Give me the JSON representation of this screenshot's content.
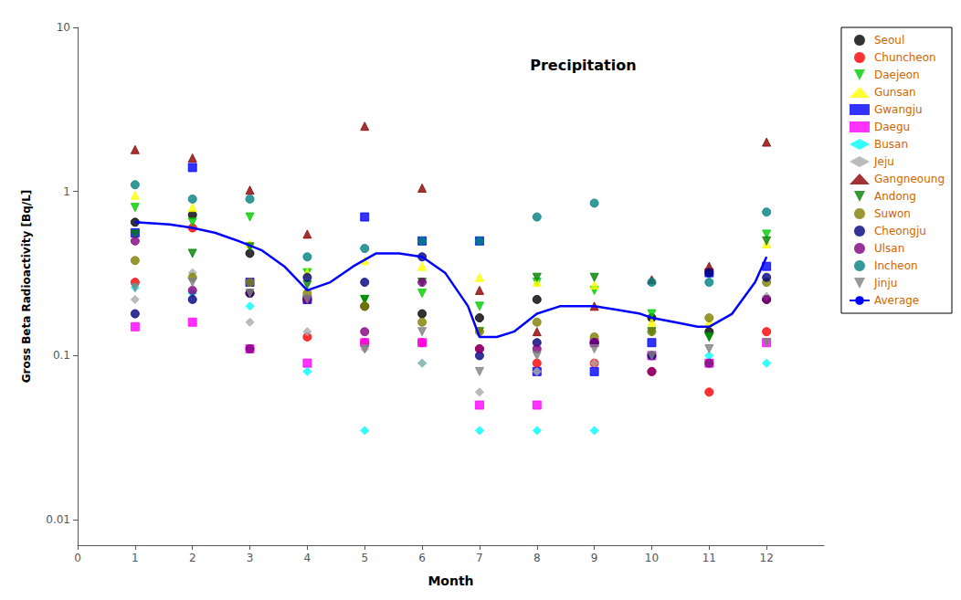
{
  "chart_data": {
    "type": "scatter",
    "title": "Precipitation",
    "xlabel": "Month",
    "ylabel": "Gross Beta Radioactivity [Bq/L]",
    "log": "y",
    "grid": false,
    "legend": "right",
    "xlim": [
      0,
      13
    ],
    "xticks": [
      0,
      1,
      2,
      3,
      4,
      5,
      6,
      7,
      8,
      9,
      10,
      11,
      12
    ],
    "ylim": [
      0.007,
      10
    ],
    "yticks": [
      0.01,
      0.1,
      1,
      10
    ],
    "x": [
      1,
      2,
      3,
      4,
      5,
      6,
      7,
      8,
      9,
      10,
      11,
      12
    ],
    "series": [
      {
        "name": "Seoul",
        "color": "#000000",
        "marker": "circle",
        "values": [
          0.65,
          0.72,
          0.42,
          0.22,
          0.2,
          0.18,
          0.17,
          0.22,
          0.12,
          0.17,
          0.14,
          0.22
        ]
      },
      {
        "name": "Chuncheon",
        "color": "#ff0000",
        "marker": "circle",
        "values": [
          0.28,
          0.6,
          0.24,
          0.13,
          0.12,
          0.12,
          0.11,
          0.09,
          0.09,
          0.08,
          0.06,
          0.14
        ]
      },
      {
        "name": "Daejeon",
        "color": "#00cc00",
        "marker": "triangle_down",
        "values": [
          0.8,
          0.65,
          0.7,
          0.32,
          0.22,
          0.24,
          0.2,
          0.28,
          0.25,
          0.18,
          0.13,
          0.55
        ]
      },
      {
        "name": "Gunsan",
        "color": "#ffff00",
        "marker": "triangle_up",
        "values": [
          0.95,
          0.8,
          0.48,
          0.32,
          0.38,
          0.35,
          0.3,
          0.28,
          0.27,
          0.16,
          0.16,
          0.48
        ]
      },
      {
        "name": "Gwangju",
        "color": "#0000ff",
        "marker": "square",
        "values": [
          0.56,
          1.4,
          0.28,
          0.22,
          0.7,
          0.5,
          0.5,
          0.08,
          0.08,
          0.12,
          0.32,
          0.35
        ]
      },
      {
        "name": "Daegu",
        "color": "#ff00ff",
        "marker": "square",
        "values": [
          0.15,
          0.16,
          0.11,
          0.09,
          0.12,
          0.12,
          0.05,
          0.05,
          0.12,
          0.1,
          0.09,
          0.12
        ]
      },
      {
        "name": "Busan",
        "color": "#00ffff",
        "marker": "diamond",
        "values": [
          0.26,
          0.24,
          0.2,
          0.08,
          0.035,
          0.09,
          0.035,
          0.035,
          0.035,
          0.14,
          0.1,
          0.09
        ]
      },
      {
        "name": "Jeju",
        "color": "#aaaaaa",
        "marker": "diamond",
        "values": [
          0.22,
          0.32,
          0.16,
          0.14,
          0.11,
          0.09,
          0.06,
          0.08,
          0.09,
          0.1,
          0.09,
          0.23
        ]
      },
      {
        "name": "Gangneoung",
        "color": "#8b0000",
        "marker": "triangle_up",
        "values": [
          1.8,
          1.6,
          1.02,
          0.55,
          2.5,
          1.05,
          0.25,
          0.14,
          0.2,
          0.29,
          0.35,
          2.0
        ]
      },
      {
        "name": "Andong",
        "color": "#008000",
        "marker": "triangle_down",
        "values": [
          0.55,
          0.42,
          0.46,
          0.27,
          0.22,
          0.28,
          0.14,
          0.3,
          0.3,
          0.14,
          0.13,
          0.5
        ]
      },
      {
        "name": "Suwon",
        "color": "#808000",
        "marker": "circle",
        "values": [
          0.38,
          0.3,
          0.28,
          0.24,
          0.2,
          0.16,
          0.14,
          0.16,
          0.13,
          0.14,
          0.17,
          0.28
        ]
      },
      {
        "name": "Cheongju",
        "color": "#000080",
        "marker": "circle",
        "values": [
          0.18,
          0.22,
          0.24,
          0.3,
          0.28,
          0.4,
          0.1,
          0.12,
          0.12,
          0.1,
          0.32,
          0.3
        ]
      },
      {
        "name": "Ulsan",
        "color": "#800080",
        "marker": "circle",
        "values": [
          0.5,
          0.25,
          0.11,
          0.22,
          0.14,
          0.28,
          0.11,
          0.11,
          0.12,
          0.08,
          0.09,
          0.22
        ]
      },
      {
        "name": "Incheon",
        "color": "#008080",
        "marker": "circle",
        "values": [
          1.1,
          0.9,
          0.9,
          0.4,
          0.45,
          0.5,
          0.5,
          0.7,
          0.85,
          0.28,
          0.28,
          0.75
        ]
      },
      {
        "name": "Jinju",
        "color": "#808080",
        "marker": "triangle_down",
        "values": [
          0.26,
          0.28,
          0.24,
          0.22,
          0.11,
          0.14,
          0.08,
          0.1,
          0.11,
          0.1,
          0.11,
          0.12
        ]
      },
      {
        "name": "Average",
        "type": "line",
        "color": "#0000ff",
        "line_style": "solid",
        "x": [
          1.0,
          1.3,
          1.6,
          2.0,
          2.4,
          2.8,
          3.2,
          3.6,
          4.0,
          4.4,
          4.8,
          5.2,
          5.6,
          6.0,
          6.4,
          6.8,
          7.0,
          7.3,
          7.6,
          8.0,
          8.4,
          8.8,
          9.0,
          9.4,
          9.8,
          10.0,
          10.4,
          10.8,
          11.0,
          11.4,
          11.8,
          12.0
        ],
        "values": [
          0.65,
          0.64,
          0.63,
          0.6,
          0.56,
          0.5,
          0.44,
          0.35,
          0.25,
          0.28,
          0.35,
          0.42,
          0.42,
          0.4,
          0.32,
          0.2,
          0.13,
          0.13,
          0.14,
          0.18,
          0.2,
          0.2,
          0.2,
          0.19,
          0.18,
          0.17,
          0.16,
          0.15,
          0.15,
          0.18,
          0.28,
          0.4
        ]
      }
    ]
  }
}
